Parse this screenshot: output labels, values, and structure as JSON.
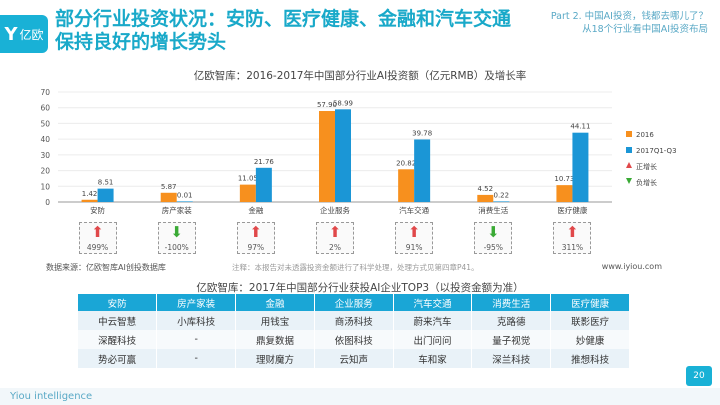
{
  "header": {
    "logo_text": "亿欧",
    "title": "部分行业投资状况：安防、医疗健康、金融和汽车交通保持良好的增长势头",
    "part_line1": "Part 2. 中国AI投资，钱都去哪儿了？",
    "part_line2": "从18个行业看中国AI投资布局"
  },
  "chart_title": "亿欧智库：2016-2017年中国部分行业AI投资额（亿元RMB）及增长率",
  "chart_data": {
    "type": "bar",
    "title": "亿欧智库：2016-2017年中国部分行业AI投资额（亿元RMB）及增长率",
    "categories": [
      "安防",
      "房产家装",
      "金融",
      "企业服务",
      "汽车交通",
      "消费生活",
      "医疗健康"
    ],
    "series": [
      {
        "name": "2016",
        "values": [
          1.42,
          5.87,
          11.05,
          57.9,
          20.82,
          4.52,
          10.73
        ],
        "labels": [
          "1.42",
          "5.87",
          "11.05",
          "57.90",
          "20.82",
          "4.52",
          "10.73"
        ]
      },
      {
        "name": "2017Q1-Q3",
        "values": [
          8.51,
          0.01,
          21.76,
          58.99,
          39.78,
          0.22,
          44.11
        ],
        "labels": [
          "8.51",
          "0.01",
          "21.76",
          "58.99",
          "39.78",
          "0.22",
          "44.11"
        ]
      }
    ],
    "growth_rates": [
      "499%",
      "-100%",
      "97%",
      "2%",
      "91%",
      "-95%",
      "311%"
    ],
    "growth_direction": [
      "up",
      "down",
      "up",
      "up",
      "up",
      "down",
      "up"
    ],
    "ylim": [
      0,
      70
    ],
    "yticks": [
      0,
      10,
      20,
      30,
      40,
      50,
      60,
      70
    ],
    "legend": [
      "2016",
      "2017Q1-Q3",
      "正增长",
      "负增长"
    ],
    "colors": {
      "2016": "#f7901e",
      "2017Q1-Q3": "#1b96d6",
      "up": "#e0484a",
      "down": "#3aaa35"
    }
  },
  "source": "数据来源：亿欧智库AI创投数据库",
  "note": "注释：本报告对未透露投资金额进行了科学处理，处理方式见第四章P41。",
  "url": "www.iyiou.com",
  "table": {
    "title": "亿欧智库：2017年中国部分行业获投AI企业TOP3（以投资金额为准）",
    "headers": [
      "安防",
      "房产家装",
      "金融",
      "企业服务",
      "汽车交通",
      "消费生活",
      "医疗健康"
    ],
    "rows": [
      [
        "中云智慧",
        "小库科技",
        "用钱宝",
        "商汤科技",
        "蔚来汽车",
        "克路德",
        "联影医疗"
      ],
      [
        "深醒科技",
        "-",
        "鼎复数据",
        "依图科技",
        "出门问问",
        "量子视觉",
        "妙健康"
      ],
      [
        "势必可赢",
        "-",
        "理财魔方",
        "云知声",
        "车和家",
        "深兰科技",
        "推想科技"
      ]
    ]
  },
  "footer": "Yiou intelligence",
  "page_number": "20"
}
